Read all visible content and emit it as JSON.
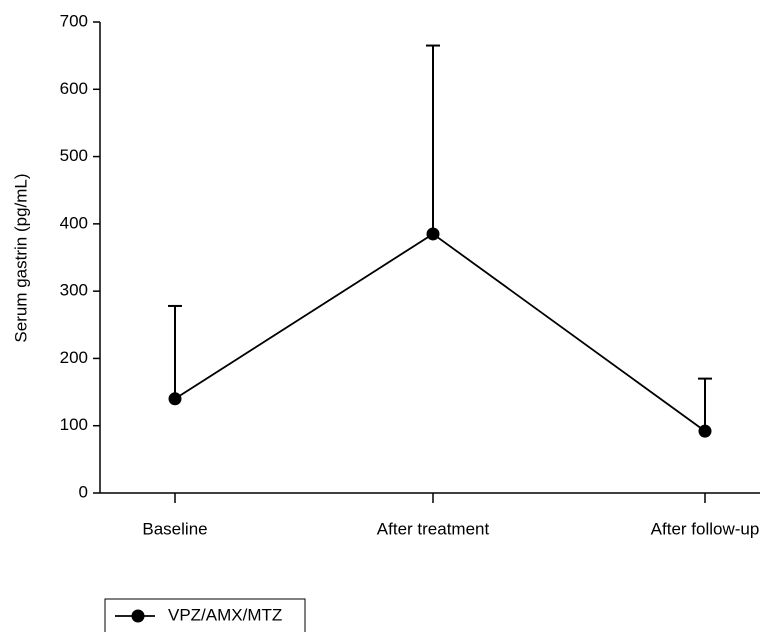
{
  "chart_data": {
    "type": "line",
    "y_label": "Serum gastrin (pg/mL)",
    "categories": [
      "Baseline",
      "After treatment",
      "After follow-up"
    ],
    "series": [
      {
        "name": "VPZ/AMX/MTZ",
        "color": "#000000",
        "values": [
          140,
          385,
          92
        ],
        "errors": [
          138,
          280,
          78
        ]
      }
    ],
    "ylim": [
      0,
      700
    ],
    "yticks": [
      0,
      100,
      200,
      300,
      400,
      500,
      600,
      700
    ],
    "grid": false,
    "legend": "bottom-left"
  }
}
